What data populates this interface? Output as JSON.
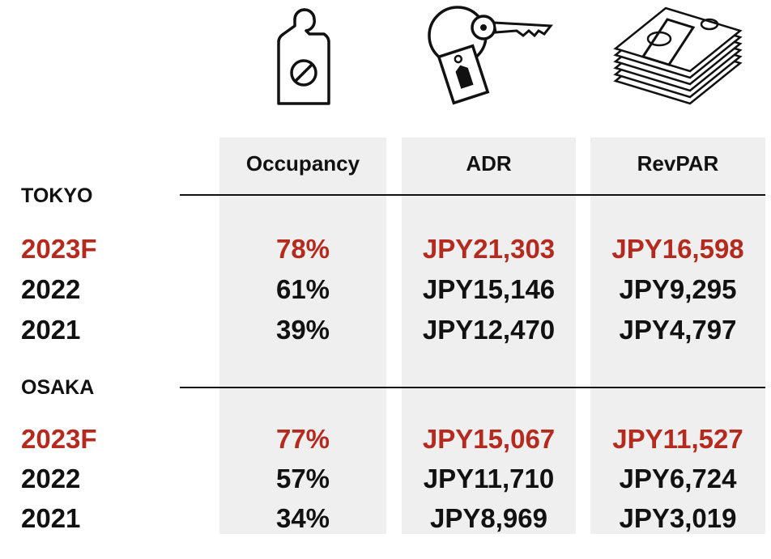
{
  "colors": {
    "forecast": "#b52a1f",
    "text": "#111111",
    "column_bg": "#efefef"
  },
  "icons": {
    "occupancy": "door-hanger-icon",
    "adr": "key-with-tag-icon",
    "revpar": "money-stack-icon"
  },
  "columns": {
    "occupancy": "Occupancy",
    "adr": "ADR",
    "revpar": "RevPAR"
  },
  "tokyo": {
    "label": "TOKYO",
    "rows": [
      {
        "year": "2023F",
        "occupancy": "78%",
        "adr": "JPY21,303",
        "revpar": "JPY16,598"
      },
      {
        "year": "2022",
        "occupancy": "61%",
        "adr": "JPY15,146",
        "revpar": "JPY9,295"
      },
      {
        "year": "2021",
        "occupancy": "39%",
        "adr": "JPY12,470",
        "revpar": "JPY4,797"
      }
    ]
  },
  "osaka": {
    "label": "OSAKA",
    "rows": [
      {
        "year": "2023F",
        "occupancy": "77%",
        "adr": "JPY15,067",
        "revpar": "JPY11,527"
      },
      {
        "year": "2022",
        "occupancy": "57%",
        "adr": "JPY11,710",
        "revpar": "JPY6,724"
      },
      {
        "year": "2021",
        "occupancy": "34%",
        "adr": "JPY8,969",
        "revpar": "JPY3,019"
      }
    ]
  }
}
